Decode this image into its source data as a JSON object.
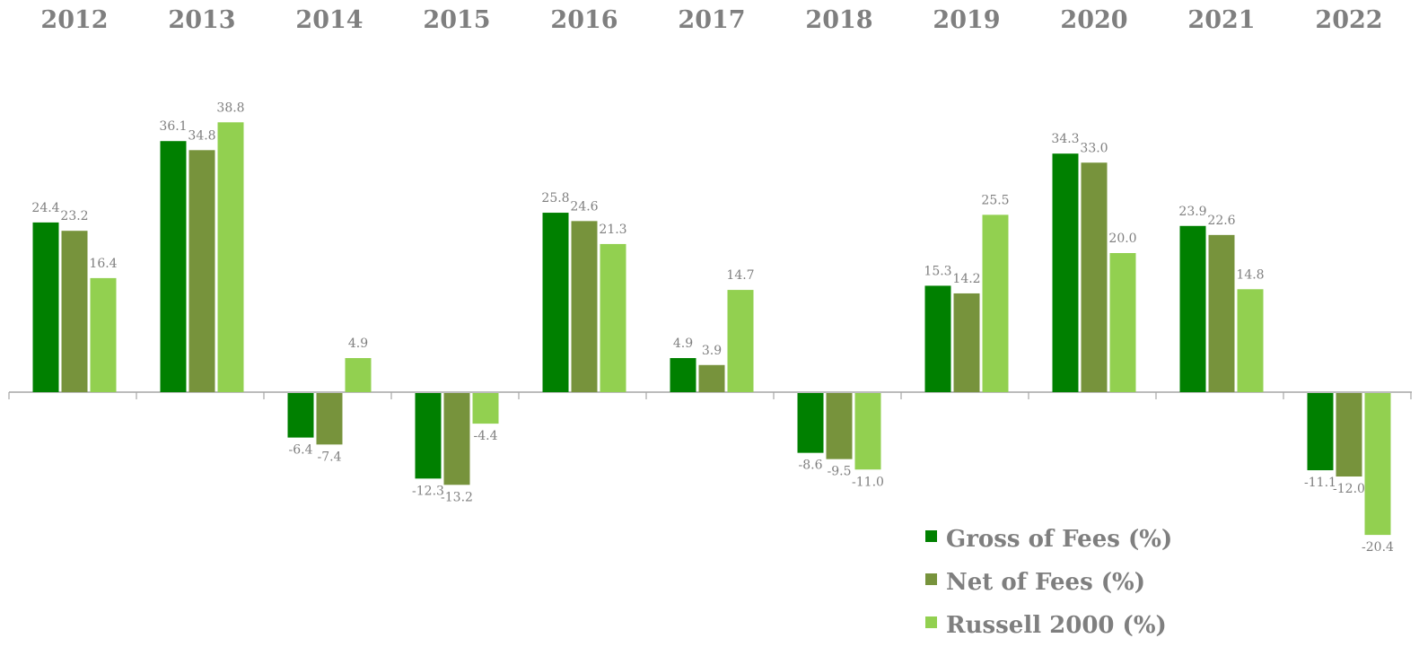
{
  "chart_data": {
    "type": "bar",
    "categories": [
      "2012",
      "2013",
      "2014",
      "2015",
      "2016",
      "2017",
      "2018",
      "2019",
      "2020",
      "2021",
      "2022"
    ],
    "series": [
      {
        "name": "Gross of Fees (%)",
        "color": "#008000",
        "values": [
          24.4,
          36.1,
          -6.4,
          -12.3,
          25.8,
          4.9,
          -8.6,
          15.3,
          34.3,
          23.9,
          -11.1
        ],
        "labels": [
          "24.4",
          "36.1",
          "-6.4",
          "-12.3",
          "25.8",
          "4.9",
          "-8.6",
          "15.3",
          "34.3",
          "23.9",
          "-11.1"
        ]
      },
      {
        "name": "Net of Fees (%)",
        "color": "#77933c",
        "values": [
          23.2,
          34.8,
          -7.4,
          -13.2,
          24.6,
          3.9,
          -9.5,
          14.2,
          33.0,
          22.6,
          -12.0
        ],
        "labels": [
          "23.2",
          "34.8",
          "-7.4",
          "-13.2",
          "24.6",
          "3.9",
          "-9.5",
          "14.2",
          "33.0",
          "22.6",
          "-12.0"
        ]
      },
      {
        "name": "Russell 2000 (%)",
        "color": "#92d050",
        "values": [
          16.4,
          38.8,
          4.9,
          -4.4,
          21.3,
          14.7,
          -11.0,
          25.5,
          20.0,
          14.8,
          -20.4
        ],
        "labels": [
          "16.4",
          "38.8",
          "4.9",
          "-4.4",
          "21.3",
          "14.7",
          "-11.0",
          "25.5",
          "20.0",
          "14.8",
          "-20.4"
        ]
      }
    ],
    "legend_position": "bottom-right",
    "grid": false,
    "xaxis_position": "top"
  }
}
